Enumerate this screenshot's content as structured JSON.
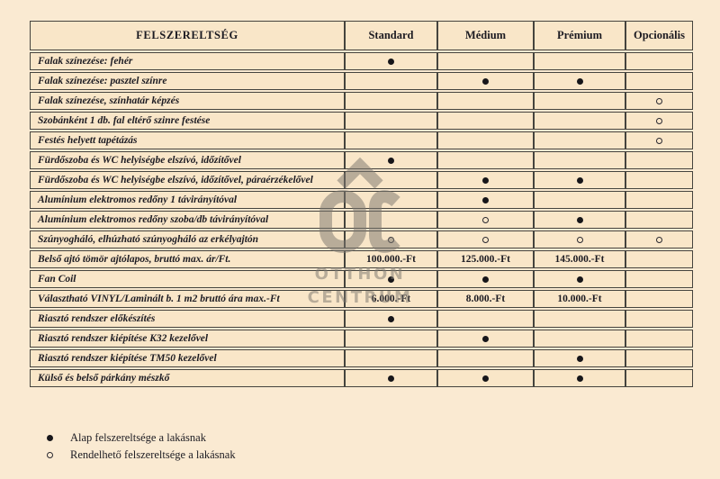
{
  "table": {
    "feature_header": "FELSZERELTSÉG",
    "columns": [
      "Standard",
      "Médium",
      "Prémium",
      "Opcionális"
    ],
    "rows": [
      {
        "label": "Falak színezése: fehér",
        "values": [
          "filled",
          "",
          "",
          ""
        ]
      },
      {
        "label": "Falak színezése: pasztel színre",
        "values": [
          "",
          "filled",
          "filled",
          ""
        ]
      },
      {
        "label": "Falak színezése, színhatár képzés",
        "values": [
          "",
          "",
          "",
          "open"
        ]
      },
      {
        "label": "Szobánként 1 db. fal eltérő szinre festése",
        "values": [
          "",
          "",
          "",
          "open"
        ]
      },
      {
        "label": "Festés helyett tapétázás",
        "values": [
          "",
          "",
          "",
          "open"
        ]
      },
      {
        "label": "Fürdőszoba és WC helyiségbe elszívó, időzítővel",
        "values": [
          "filled",
          "",
          "",
          ""
        ]
      },
      {
        "label": "Fürdőszoba és WC helyiségbe elszívó, időzítővel, páraérzékelővel",
        "values": [
          "",
          "filled",
          "filled",
          ""
        ]
      },
      {
        "label": "Alumínium elektromos redőny 1 távirányítóval",
        "values": [
          "",
          "filled",
          "",
          ""
        ]
      },
      {
        "label": "Alumínium elektromos redőny szoba/db távirányítóval",
        "values": [
          "",
          "open",
          "filled",
          ""
        ]
      },
      {
        "label": "Szúnyogháló, elhúzható szúnyogháló az erkélyajtón",
        "values": [
          "open",
          "open",
          "open",
          "open"
        ]
      },
      {
        "label": "Belső ajtó tömör ajtólapos, bruttó max. ár/Ft.",
        "values": [
          "100.000.-Ft",
          "125.000.-Ft",
          "145.000.-Ft",
          ""
        ]
      },
      {
        "label": "Fan Coil",
        "values": [
          "filled",
          "filled",
          "filled",
          ""
        ]
      },
      {
        "label": "Választható VINYL/Laminált b. 1 m2 bruttó ára max.-Ft",
        "values": [
          "6.000.-Ft",
          "8.000.-Ft",
          "10.000.-Ft",
          ""
        ]
      },
      {
        "label": "Riasztó rendszer előkészítés",
        "values": [
          "filled",
          "",
          "",
          ""
        ]
      },
      {
        "label": "Riasztó rendszer kiépítése K32 kezelővel",
        "values": [
          "",
          "filled",
          "",
          ""
        ]
      },
      {
        "label": "Riasztó rendszer kiépítése TM50 kezelővel",
        "values": [
          "",
          "",
          "filled",
          ""
        ]
      },
      {
        "label": "Külső és belső párkány mészkő",
        "values": [
          "filled",
          "filled",
          "filled",
          ""
        ]
      }
    ]
  },
  "legend": {
    "items": [
      {
        "symbol": "filled",
        "text": "Alap felszereltsége a lakásnak"
      },
      {
        "symbol": "open",
        "text": "Rendelhető felszereltsége a lakásnak"
      }
    ]
  },
  "watermark": {
    "monogram": "OC",
    "line1": "OTTHON",
    "line2": "CENTRUM"
  },
  "colors": {
    "background": "#faead2",
    "cell": "#f9e6c8",
    "border": "#45443e",
    "text": "#1c1b22",
    "watermark": "#7d7870"
  }
}
